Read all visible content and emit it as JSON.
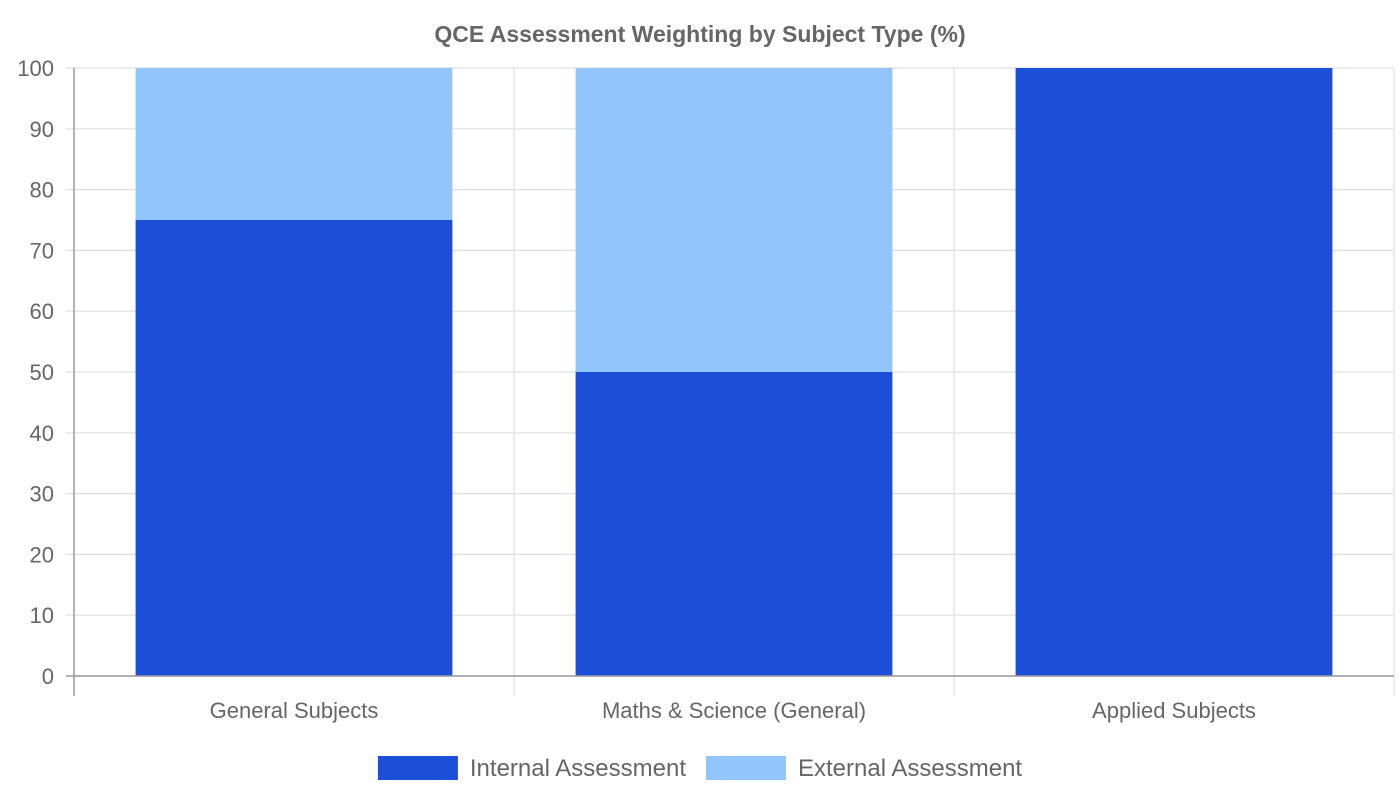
{
  "chart_data": {
    "type": "bar",
    "stacked": true,
    "title": "QCE Assessment Weighting by Subject Type (%)",
    "xlabel": "",
    "ylabel": "",
    "categories": [
      "General Subjects",
      "Maths & Science (General)",
      "Applied Subjects"
    ],
    "series": [
      {
        "name": "Internal Assessment",
        "values": [
          75,
          50,
          100
        ],
        "color": "#1d4ed8"
      },
      {
        "name": "External Assessment",
        "values": [
          25,
          50,
          0
        ],
        "color": "#93c5fd"
      }
    ],
    "ylim": [
      0,
      100
    ],
    "yticks": [
      0,
      10,
      20,
      30,
      40,
      50,
      60,
      70,
      80,
      90,
      100
    ],
    "grid": true,
    "legend_position": "bottom"
  }
}
